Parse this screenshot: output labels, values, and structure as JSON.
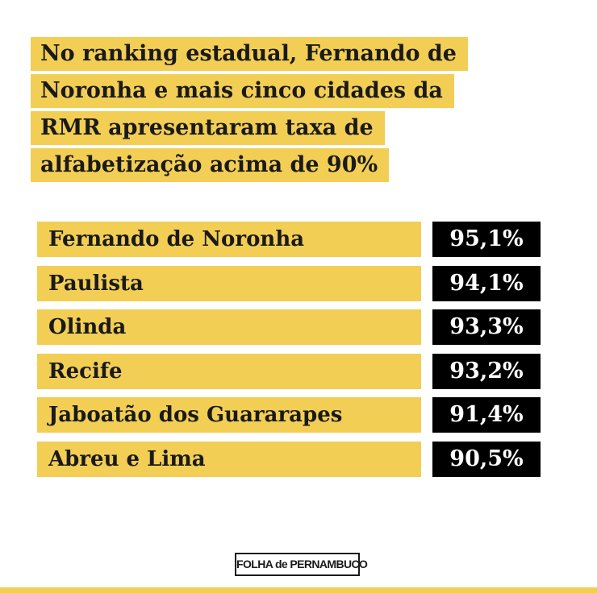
{
  "headline": {
    "lines": [
      "No ranking estadual, Fernando de",
      "Noronha e mais cinco cidades da",
      "RMR apresentaram taxa de",
      "alfabetização acima de 90%"
    ]
  },
  "chart_data": {
    "type": "table",
    "categories": [
      "Fernando de Noronha",
      "Paulista",
      "Olinda",
      "Recife",
      "Jaboatão dos Guararapes",
      "Abreu e Lima"
    ],
    "values": [
      95.1,
      94.1,
      93.3,
      93.2,
      91.4,
      90.5
    ],
    "value_labels": [
      "95,1%",
      "94,1%",
      "93,3%",
      "93,2%",
      "91,4%",
      "90,5%"
    ]
  },
  "logo": {
    "text": "FOLHA de PERNAMBUCO"
  },
  "colors": {
    "accent_yellow": "#f2ce55",
    "value_box": "#000000",
    "text_dark": "#1a1a1a"
  }
}
